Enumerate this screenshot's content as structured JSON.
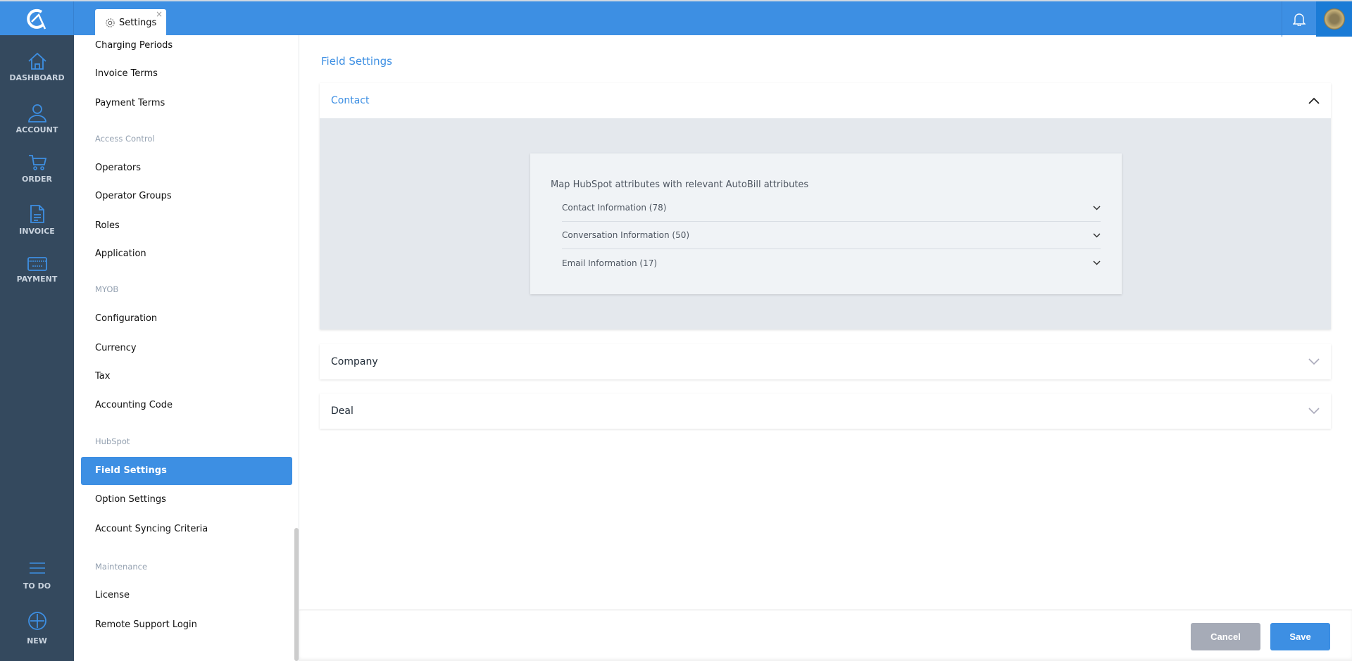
{
  "topbar": {
    "tab_label": "Settings",
    "tab_close": "×",
    "brand_color": "#3d8fe3"
  },
  "rail": {
    "items": [
      {
        "label": "DASHBOARD",
        "icon": "home-icon"
      },
      {
        "label": "ACCOUNT",
        "icon": "user-icon"
      },
      {
        "label": "ORDER",
        "icon": "cart-icon"
      },
      {
        "label": "INVOICE",
        "icon": "document-icon"
      },
      {
        "label": "PAYMENT",
        "icon": "credit-card-icon"
      },
      {
        "label": "TO DO",
        "icon": "menu-icon"
      },
      {
        "label": "NEW",
        "icon": "plus-circle-icon"
      }
    ]
  },
  "sidebar": {
    "items": [
      "Charging Periods",
      "Invoice Terms",
      "Payment Terms"
    ],
    "access_control": {
      "title": "Access Control",
      "items": [
        "Operators",
        "Operator Groups",
        "Roles",
        "Application"
      ]
    },
    "myob": {
      "title": "MYOB",
      "items": [
        "Configuration",
        "Currency",
        "Tax",
        "Accounting Code"
      ]
    },
    "hubspot": {
      "title": "HubSpot",
      "items": [
        "Field Settings",
        "Option Settings",
        "Account Syncing Criteria"
      ],
      "active": "Field Settings"
    },
    "maintenance": {
      "title": "Maintenance",
      "items": [
        "License",
        "Remote Support Login"
      ]
    }
  },
  "main": {
    "title": "Field Settings",
    "sections": [
      {
        "label": "Contact",
        "expanded": true,
        "heading": "Map HubSpot attributes with relevant AutoBill attributes",
        "groups": [
          "Contact Information (78)",
          "Conversation Information (50)",
          "Email Information (17)"
        ]
      },
      {
        "label": "Company",
        "expanded": false
      },
      {
        "label": "Deal",
        "expanded": false
      }
    ]
  },
  "footer": {
    "cancel": "Cancel",
    "save": "Save"
  }
}
